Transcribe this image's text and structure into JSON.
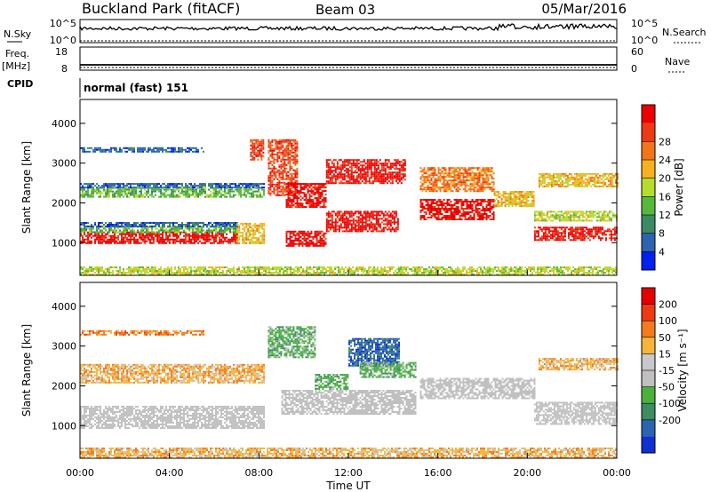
{
  "header": {
    "station": "Buckland Park (fitACF)",
    "beam": "Beam 03",
    "date": "05/Mar/2016"
  },
  "status_panels": {
    "nsky_label": "N.Sky",
    "nsky_ticks": [
      "10^5",
      "10^0"
    ],
    "nsearch_label": "N.Search",
    "nsearch_ticks": [
      "10^5",
      "10^0"
    ],
    "freq_label_1": "Freq.",
    "freq_label_2": "[MHz]",
    "freq_ticks": [
      "18",
      "8"
    ],
    "nave_label": "Nave",
    "nave_ticks": [
      "60",
      "0"
    ],
    "cpid_label": "CPID",
    "cpid_value": "normal (fast) 151"
  },
  "colors": {
    "power_scale": [
      "#0022ee",
      "#2c63b2",
      "#3c8a64",
      "#58b83c",
      "#b6dc2c",
      "#f5b21d",
      "#f27519",
      "#ee3a12",
      "#ea0000"
    ],
    "velocity_scale": [
      "#1030d0",
      "#2b64b0",
      "#3d8c62",
      "#4ab13c",
      "#c0c0c0",
      "#c8c8c8",
      "#f6b43a",
      "#f47a1c",
      "#ee3a12",
      "#e60000"
    ],
    "grey": "#c4c4c4"
  },
  "chart_data": [
    {
      "type": "heatmap",
      "name": "power",
      "xlabel": "",
      "ylabel": "Slant Range [km]",
      "xlim": [
        0,
        24
      ],
      "ylim": [
        180,
        4600
      ],
      "yticks": [
        "1000",
        "2000",
        "3000",
        "4000"
      ],
      "colorbar_label": "Power [dB]",
      "colorbar_ticks": [
        "4",
        "8",
        "12",
        "16",
        "20",
        "24",
        "28"
      ],
      "bands": [
        {
          "t0": 0.0,
          "t1": 7.0,
          "r0": 1000,
          "r1": 1280,
          "c": 8
        },
        {
          "t0": 0.0,
          "t1": 7.0,
          "r0": 1280,
          "r1": 1420,
          "c": 3
        },
        {
          "t0": 0.0,
          "t1": 7.0,
          "r0": 1420,
          "r1": 1520,
          "c": 1
        },
        {
          "t0": 0.0,
          "t1": 8.2,
          "r0": 2150,
          "r1": 2400,
          "c": 3
        },
        {
          "t0": 0.0,
          "t1": 8.2,
          "r0": 2400,
          "r1": 2500,
          "c": 1
        },
        {
          "t0": 0.0,
          "t1": 5.5,
          "r0": 3300,
          "r1": 3400,
          "c": 1
        },
        {
          "t0": 7.0,
          "t1": 8.2,
          "r0": 1000,
          "r1": 1500,
          "c": 5
        },
        {
          "t0": 7.6,
          "t1": 8.2,
          "r0": 3100,
          "r1": 3600,
          "c": 7
        },
        {
          "t0": 8.4,
          "t1": 9.7,
          "r0": 2200,
          "r1": 3600,
          "c": 7
        },
        {
          "t0": 9.2,
          "t1": 11.0,
          "r0": 900,
          "r1": 1300,
          "c": 8
        },
        {
          "t0": 9.2,
          "t1": 11.0,
          "r0": 1900,
          "r1": 2500,
          "c": 8
        },
        {
          "t0": 11.0,
          "t1": 14.2,
          "r0": 1300,
          "r1": 1800,
          "c": 8
        },
        {
          "t0": 11.0,
          "t1": 14.5,
          "r0": 2500,
          "r1": 3100,
          "c": 8
        },
        {
          "t0": 15.2,
          "t1": 18.5,
          "r0": 1600,
          "r1": 2100,
          "c": 8
        },
        {
          "t0": 15.2,
          "t1": 18.5,
          "r0": 2300,
          "r1": 2900,
          "c": 6
        },
        {
          "t0": 18.5,
          "t1": 20.3,
          "r0": 1900,
          "r1": 2300,
          "c": 5
        },
        {
          "t0": 20.3,
          "t1": 24.0,
          "r0": 1050,
          "r1": 1400,
          "c": 8
        },
        {
          "t0": 20.3,
          "t1": 24.0,
          "r0": 1550,
          "r1": 1800,
          "c": 4
        },
        {
          "t0": 20.5,
          "t1": 24.0,
          "r0": 2400,
          "r1": 2750,
          "c": 5
        },
        {
          "t0": 0.0,
          "t1": 24.0,
          "r0": 200,
          "r1": 400,
          "c": 4
        }
      ]
    },
    {
      "type": "heatmap",
      "name": "velocity",
      "xlabel": "Time UT",
      "ylabel": "Slant Range [km]",
      "xlim": [
        0,
        24
      ],
      "ylim": [
        180,
        4600
      ],
      "xticks": [
        "00:00",
        "04:00",
        "08:00",
        "12:00",
        "16:00",
        "20:00",
        "00:00"
      ],
      "yticks": [
        "1000",
        "2000",
        "3000",
        "4000"
      ],
      "colorbar_label": "Velocity [m s⁻¹]",
      "colorbar_ticks": [
        "200",
        "100",
        "50",
        "15",
        "-15",
        "-50",
        "-100",
        "-200"
      ],
      "bands": [
        {
          "t0": 0.0,
          "t1": 8.2,
          "r0": 950,
          "r1": 1500,
          "c": 4
        },
        {
          "t0": 0.0,
          "t1": 8.2,
          "r0": 2100,
          "r1": 2550,
          "c": 6
        },
        {
          "t0": 0.0,
          "t1": 5.5,
          "r0": 3300,
          "r1": 3400,
          "c": 7
        },
        {
          "t0": 8.4,
          "t1": 10.5,
          "r0": 2700,
          "r1": 3500,
          "c": 3
        },
        {
          "t0": 10.5,
          "t1": 12.0,
          "r0": 1900,
          "r1": 2300,
          "c": 3
        },
        {
          "t0": 12.0,
          "t1": 14.3,
          "r0": 2500,
          "r1": 3200,
          "c": 1
        },
        {
          "t0": 12.5,
          "t1": 15.0,
          "r0": 2200,
          "r1": 2600,
          "c": 3
        },
        {
          "t0": 9.0,
          "t1": 15.0,
          "r0": 1300,
          "r1": 1900,
          "c": 4
        },
        {
          "t0": 15.2,
          "t1": 20.3,
          "r0": 1700,
          "r1": 2200,
          "c": 4
        },
        {
          "t0": 20.3,
          "t1": 24.0,
          "r0": 1050,
          "r1": 1600,
          "c": 4
        },
        {
          "t0": 20.5,
          "t1": 24.0,
          "r0": 2400,
          "r1": 2700,
          "c": 6
        },
        {
          "t0": 0.0,
          "t1": 24.0,
          "r0": 200,
          "r1": 450,
          "c": 6
        }
      ]
    }
  ]
}
